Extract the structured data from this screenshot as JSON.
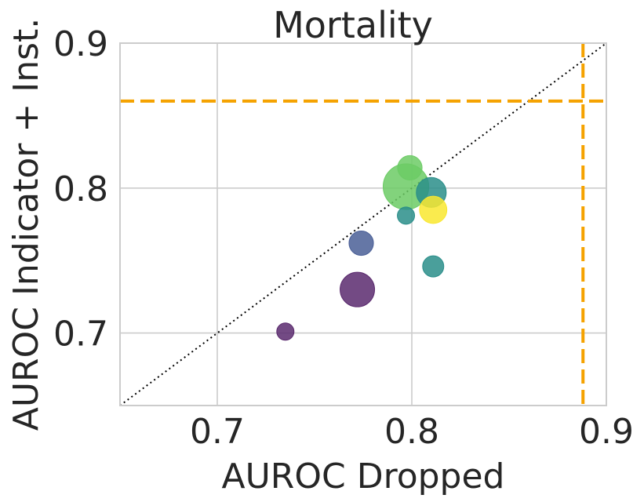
{
  "chart_data": {
    "type": "scatter",
    "title": "Mortality",
    "xlabel": "AUROC Dropped",
    "ylabel": "AUROC Indicator + Inst.",
    "xlim": [
      0.65,
      0.9
    ],
    "ylim": [
      0.65,
      0.9
    ],
    "xticks": [
      0.7,
      0.8,
      0.9
    ],
    "yticks": [
      0.7,
      0.8,
      0.9
    ],
    "xtick_labels": [
      "0.7",
      "0.8",
      "0.9"
    ],
    "ytick_labels": [
      "0.7",
      "0.8",
      "0.9"
    ],
    "grid": true,
    "diagonal": {
      "style": "dotted",
      "color": "#000000"
    },
    "reference_lines": {
      "vertical_x": 0.888,
      "horizontal_y": 0.86,
      "color": "#f5a200",
      "style": "dashed"
    },
    "points": [
      {
        "x": 0.735,
        "y": 0.701,
        "size": 1,
        "color": "#5b2a6e"
      },
      {
        "x": 0.772,
        "y": 0.73,
        "size": 4,
        "color": "#5b2a6e"
      },
      {
        "x": 0.774,
        "y": 0.762,
        "size": 2,
        "color": "#4a5f97"
      },
      {
        "x": 0.797,
        "y": 0.781,
        "size": 1,
        "color": "#2a8e8a"
      },
      {
        "x": 0.799,
        "y": 0.814,
        "size": 2,
        "color": "#6ccb65"
      },
      {
        "x": 0.797,
        "y": 0.801,
        "size": 7,
        "color": "#6ccb65"
      },
      {
        "x": 0.81,
        "y": 0.797,
        "size": 3,
        "color": "#2a8e8a"
      },
      {
        "x": 0.811,
        "y": 0.785,
        "size": 2.5,
        "color": "#f9e72f"
      },
      {
        "x": 0.811,
        "y": 0.746,
        "size": 1.5,
        "color": "#2a8e8a"
      }
    ]
  }
}
